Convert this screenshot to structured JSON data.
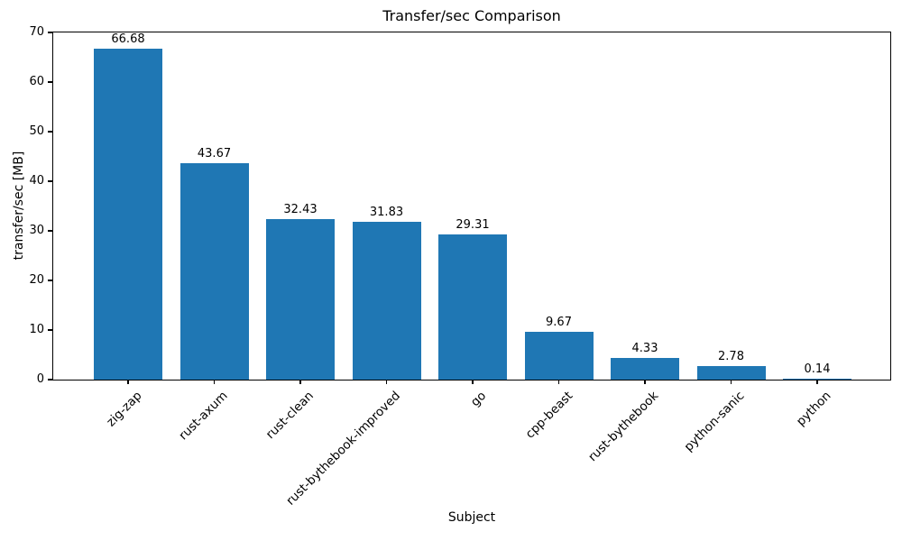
{
  "chart_data": {
    "type": "bar",
    "title": "Transfer/sec Comparison",
    "xlabel": "Subject",
    "ylabel": "transfer/sec [MB]",
    "categories": [
      "zig-zap",
      "rust-axum",
      "rust-clean",
      "rust-bythebook-improved",
      "go",
      "cpp-beast",
      "rust-bythebook",
      "python-sanic",
      "python"
    ],
    "values": [
      66.68,
      43.67,
      32.43,
      31.83,
      29.31,
      9.67,
      4.33,
      2.78,
      0.14
    ],
    "value_labels": [
      "66.68",
      "43.67",
      "32.43",
      "31.83",
      "29.31",
      "9.67",
      "4.33",
      "2.78",
      "0.14"
    ],
    "ylim": [
      0,
      70
    ],
    "yticks": [
      0,
      10,
      20,
      30,
      40,
      50,
      60,
      70
    ],
    "bar_color": "#1f77b4",
    "background": "#ffffff",
    "grid": false,
    "legend": null,
    "x_tick_rotation": 45
  }
}
